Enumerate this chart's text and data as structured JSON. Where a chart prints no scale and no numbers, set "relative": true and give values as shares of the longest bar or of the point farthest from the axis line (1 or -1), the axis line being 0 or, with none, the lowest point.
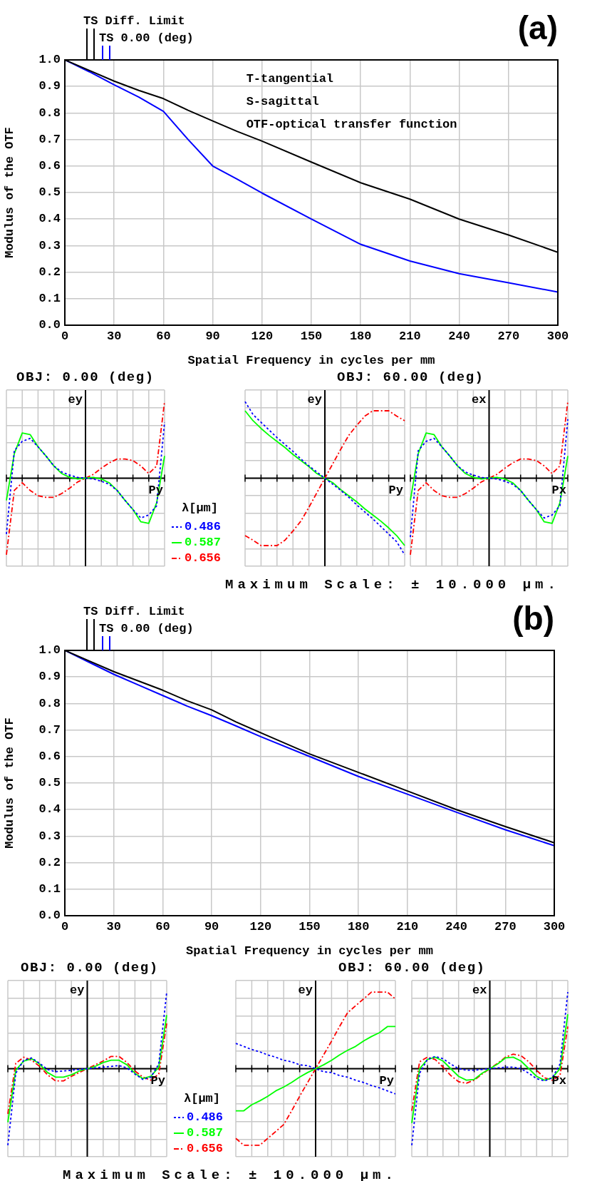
{
  "chart_data": [
    {
      "type": "line",
      "title": "(a)",
      "xlabel": "Spatial Frequency in cycles per mm",
      "ylabel": "Modulus of the OTF",
      "legend": "top left",
      "grid": true,
      "annotations": [
        "T-tangential",
        "S-sagittal",
        "OTF-optical transfer function"
      ],
      "x": [
        0,
        15,
        30,
        45,
        60,
        75,
        90,
        105,
        120,
        150,
        180,
        210,
        240,
        270,
        300
      ],
      "xlim": [
        0,
        300
      ],
      "ylim": [
        0,
        1
      ],
      "xticks": [
        0,
        30,
        60,
        90,
        120,
        150,
        180,
        210,
        240,
        270,
        300
      ],
      "yticks": [
        {
          "value": 0,
          "label": "0.0"
        },
        {
          "value": 0.1,
          "label": "0.1"
        },
        {
          "value": 0.2,
          "label": "0.2"
        },
        {
          "value": 0.3,
          "label": "0.3"
        },
        {
          "value": 0.4,
          "label": "0.4"
        },
        {
          "value": 0.5,
          "label": "0.5"
        },
        {
          "value": 0.6,
          "label": "0.6"
        },
        {
          "value": 0.7,
          "label": "0.7"
        },
        {
          "value": 0.8,
          "label": "0.8"
        },
        {
          "value": 0.9,
          "label": "0.9"
        },
        {
          "value": 1,
          "label": "1.0"
        }
      ],
      "series": [
        {
          "name": "TS Diff. Limit",
          "color": "#000000",
          "values": [
            1,
            0.96,
            0.92,
            0.885,
            0.854,
            0.81,
            0.77,
            0.73,
            0.694,
            0.615,
            0.537,
            0.475,
            0.4,
            0.34,
            0.275
          ]
        },
        {
          "name": "TS 0.00 (deg)",
          "color": "#0000ff",
          "values": [
            1,
            0.955,
            0.906,
            0.86,
            0.806,
            0.7,
            0.6,
            0.55,
            0.498,
            0.4,
            0.305,
            0.242,
            0.194,
            0.16,
            0.125
          ]
        }
      ]
    },
    {
      "type": "line",
      "title": "(b)",
      "xlabel": "Spatial Frequency in cycles per mm",
      "ylabel": "Modulus of the OTF",
      "legend": "top left",
      "grid": true,
      "x": [
        0,
        15,
        30,
        45,
        60,
        75,
        90,
        105,
        120,
        150,
        180,
        210,
        240,
        270,
        300
      ],
      "xlim": [
        0,
        300
      ],
      "ylim": [
        0,
        1
      ],
      "xticks": [
        0,
        30,
        60,
        90,
        120,
        150,
        180,
        210,
        240,
        270,
        300
      ],
      "yticks": [
        {
          "value": 0,
          "label": "0.0"
        },
        {
          "value": 0.1,
          "label": "0.1"
        },
        {
          "value": 0.2,
          "label": "0.2"
        },
        {
          "value": 0.3,
          "label": "0.3"
        },
        {
          "value": 0.4,
          "label": "0.4"
        },
        {
          "value": 0.5,
          "label": "0.5"
        },
        {
          "value": 0.6,
          "label": "0.6"
        },
        {
          "value": 0.7,
          "label": "0.7"
        },
        {
          "value": 0.8,
          "label": "0.8"
        },
        {
          "value": 0.9,
          "label": "0.9"
        },
        {
          "value": 1,
          "label": "1.0"
        }
      ],
      "series": [
        {
          "name": "TS Diff. Limit",
          "color": "#000000",
          "values": [
            1,
            0.96,
            0.92,
            0.885,
            0.85,
            0.81,
            0.776,
            0.73,
            0.69,
            0.61,
            0.54,
            0.47,
            0.4,
            0.336,
            0.275
          ]
        },
        {
          "name": "TS 0.00 (deg)",
          "color": "#0000ff",
          "values": [
            1,
            0.955,
            0.91,
            0.87,
            0.83,
            0.79,
            0.754,
            0.715,
            0.675,
            0.6,
            0.525,
            0.458,
            0.39,
            0.324,
            0.264
          ]
        }
      ]
    },
    {
      "type": "line",
      "title": "OBJ: 0.00 (deg)",
      "xlabel": "Py",
      "ylabel": "ey",
      "legend_title": "λ[µm]",
      "legend": "right",
      "grid": true,
      "relative": true,
      "categories": [
        null,
        null,
        null,
        null,
        null,
        null,
        null,
        null,
        null,
        null,
        null,
        null,
        null,
        null,
        null,
        null,
        null,
        null,
        null,
        null,
        null
      ],
      "series": [
        {
          "name": "0.486",
          "color": "#0000ff",
          "line_style": "dotted",
          "values": [
            -0.73,
            0.36,
            0.48,
            0.52,
            0.41,
            0.29,
            0.16,
            0.08,
            0.04,
            0.01,
            0,
            -0.01,
            -0.04,
            -0.08,
            -0.16,
            -0.29,
            -0.41,
            -0.52,
            -0.48,
            -0.36,
            0.73
          ]
        },
        {
          "name": "0.587",
          "color": "#00ff00",
          "line_style": "solid",
          "values": [
            -0.29,
            0.32,
            0.59,
            0.57,
            0.41,
            0.29,
            0.16,
            0.06,
            0.01,
            -0.01,
            0,
            0.01,
            -0.01,
            -0.06,
            -0.16,
            -0.29,
            -0.41,
            -0.57,
            -0.59,
            -0.32,
            0.29
          ]
        },
        {
          "name": "0.656",
          "color": "#ff0000",
          "line_style": "dashed",
          "values": [
            -1,
            -0.16,
            -0.06,
            -0.16,
            -0.23,
            -0.25,
            -0.25,
            -0.2,
            -0.13,
            -0.05,
            0,
            0.05,
            0.13,
            0.2,
            0.25,
            0.25,
            0.23,
            0.16,
            0.06,
            0.16,
            1
          ]
        }
      ]
    },
    {
      "type": "line",
      "title": "OBJ: 60.00 (deg)",
      "xlabel": "Py",
      "ylabel": "ey",
      "grid": true,
      "relative": true,
      "annotations": [
        "Maximum Scale: ± 10.000 µm."
      ],
      "categories": [
        null,
        null,
        null,
        null,
        null,
        null,
        null,
        null,
        null,
        null,
        null,
        null,
        null,
        null,
        null,
        null,
        null,
        null,
        null,
        null,
        null
      ],
      "series": [
        {
          "color": "#0000ff",
          "line_style": "dotted",
          "values": [
            1,
            0.83,
            0.73,
            0.63,
            0.53,
            0.44,
            0.35,
            0.25,
            0.16,
            0.08,
            0,
            -0.08,
            -0.16,
            -0.25,
            -0.35,
            -0.44,
            -0.53,
            -0.63,
            -0.73,
            -0.83,
            -1
          ]
        },
        {
          "color": "#00ff00",
          "line_style": "solid",
          "values": [
            0.88,
            0.75,
            0.65,
            0.56,
            0.48,
            0.4,
            0.31,
            0.23,
            0.15,
            0.06,
            0,
            -0.06,
            -0.15,
            -0.23,
            -0.31,
            -0.4,
            -0.48,
            -0.56,
            -0.65,
            -0.75,
            -0.88
          ]
        },
        {
          "color": "#ff0000",
          "line_style": "dashed",
          "values": [
            -0.75,
            -0.81,
            -0.88,
            -0.88,
            -0.88,
            -0.81,
            -0.69,
            -0.56,
            -0.38,
            -0.19,
            0,
            0.19,
            0.38,
            0.56,
            0.69,
            0.81,
            0.88,
            0.88,
            0.88,
            0.81,
            0.75
          ]
        }
      ]
    },
    {
      "type": "line",
      "xlabel": "Px",
      "ylabel": "ex",
      "grid": true,
      "relative": true,
      "categories": [
        null,
        null,
        null,
        null,
        null,
        null,
        null,
        null,
        null,
        null,
        null,
        null,
        null,
        null,
        null,
        null,
        null,
        null,
        null,
        null,
        null
      ],
      "series": [
        {
          "color": "#0000ff",
          "line_style": "dotted",
          "values": [
            -0.77,
            0.36,
            0.48,
            0.52,
            0.41,
            0.29,
            0.16,
            0.08,
            0.04,
            0.01,
            0,
            -0.01,
            -0.04,
            -0.08,
            -0.16,
            -0.29,
            -0.41,
            -0.52,
            -0.48,
            -0.36,
            0.77
          ]
        },
        {
          "color": "#00ff00",
          "line_style": "solid",
          "values": [
            -0.29,
            0.32,
            0.59,
            0.57,
            0.41,
            0.29,
            0.16,
            0.06,
            0.01,
            -0.01,
            0,
            0.01,
            -0.01,
            -0.06,
            -0.16,
            -0.29,
            -0.41,
            -0.57,
            -0.59,
            -0.32,
            0.29
          ]
        },
        {
          "color": "#ff0000",
          "line_style": "dashed",
          "values": [
            -1,
            -0.16,
            -0.06,
            -0.16,
            -0.23,
            -0.25,
            -0.25,
            -0.2,
            -0.13,
            -0.05,
            0,
            0.05,
            0.13,
            0.2,
            0.25,
            0.25,
            0.23,
            0.16,
            0.06,
            0.16,
            1
          ]
        }
      ]
    },
    {
      "type": "line",
      "title": "OBJ: 0.00 (deg)",
      "xlabel": "Py",
      "ylabel": "ey",
      "legend_title": "λ[µm]",
      "legend": "right",
      "grid": true,
      "relative": true,
      "categories": [
        null,
        null,
        null,
        null,
        null,
        null,
        null,
        null,
        null,
        null,
        null,
        null,
        null,
        null,
        null,
        null,
        null,
        null,
        null,
        null,
        null
      ],
      "series": [
        {
          "name": "0.486",
          "color": "#0000ff",
          "line_style": "dotted",
          "values": [
            -1,
            -0.06,
            0.11,
            0.14,
            0.07,
            -0.01,
            -0.04,
            -0.03,
            -0.02,
            -0.01,
            0,
            0.01,
            0.02,
            0.03,
            0.04,
            0.01,
            -0.07,
            -0.14,
            -0.11,
            0.06,
            1
          ]
        },
        {
          "name": "0.587",
          "color": "#00ff00",
          "line_style": "solid",
          "values": [
            -0.7,
            -0.02,
            0.1,
            0.13,
            0.06,
            -0.05,
            -0.11,
            -0.11,
            -0.08,
            -0.03,
            0,
            0.03,
            0.08,
            0.11,
            0.11,
            0.05,
            -0.06,
            -0.13,
            -0.1,
            0.02,
            0.7
          ]
        },
        {
          "name": "0.656",
          "color": "#ff0000",
          "line_style": "dashed",
          "values": [
            -0.59,
            0.07,
            0.15,
            0.11,
            0.03,
            -0.08,
            -0.16,
            -0.16,
            -0.1,
            -0.05,
            0,
            0.05,
            0.1,
            0.16,
            0.16,
            0.08,
            -0.03,
            -0.11,
            -0.15,
            -0.07,
            0.59
          ]
        }
      ]
    },
    {
      "type": "line",
      "title": "OBJ: 60.00 (deg)",
      "xlabel": "Py",
      "ylabel": "ey",
      "grid": true,
      "relative": true,
      "annotations": [
        "Maximum Scale: ± 10.000 µm."
      ],
      "categories": [
        null,
        null,
        null,
        null,
        null,
        null,
        null,
        null,
        null,
        null,
        null,
        null,
        null,
        null,
        null,
        null,
        null,
        null,
        null,
        null,
        null
      ],
      "series": [
        {
          "color": "#0000ff",
          "line_style": "dotted",
          "values": [
            0.33,
            0.29,
            0.25,
            0.22,
            0.18,
            0.15,
            0.11,
            0.09,
            0.05,
            0.04,
            0,
            -0.04,
            -0.05,
            -0.09,
            -0.11,
            -0.15,
            -0.18,
            -0.22,
            -0.25,
            -0.29,
            -0.33
          ]
        },
        {
          "color": "#00ff00",
          "line_style": "solid",
          "values": [
            -0.55,
            -0.55,
            -0.47,
            -0.42,
            -0.36,
            -0.29,
            -0.24,
            -0.18,
            -0.11,
            -0.05,
            0,
            0.05,
            0.11,
            0.18,
            0.24,
            0.29,
            0.36,
            0.42,
            0.47,
            0.55,
            0.55
          ]
        },
        {
          "color": "#ff0000",
          "line_style": "dashed",
          "values": [
            -0.91,
            -1,
            -1,
            -1,
            -0.91,
            -0.82,
            -0.73,
            -0.55,
            -0.36,
            -0.18,
            0,
            0.18,
            0.36,
            0.55,
            0.73,
            0.82,
            0.91,
            1,
            1,
            1,
            0.91
          ]
        }
      ]
    },
    {
      "type": "line",
      "xlabel": "Px",
      "ylabel": "ex",
      "grid": true,
      "relative": true,
      "categories": [
        null,
        null,
        null,
        null,
        null,
        null,
        null,
        null,
        null,
        null,
        null,
        null,
        null,
        null,
        null,
        null,
        null,
        null,
        null,
        null,
        null
      ],
      "series": [
        {
          "color": "#0000ff",
          "line_style": "dotted",
          "values": [
            -1,
            -0.06,
            0.12,
            0.16,
            0.13,
            0.06,
            0,
            -0.02,
            -0.02,
            -0.01,
            0,
            0.01,
            0.02,
            0.02,
            0,
            -0.06,
            -0.13,
            -0.16,
            -0.12,
            0.06,
            1
          ]
        },
        {
          "color": "#00ff00",
          "line_style": "solid",
          "values": [
            -0.71,
            0,
            0.12,
            0.15,
            0.1,
            0,
            -0.1,
            -0.15,
            -0.14,
            -0.06,
            0,
            0.06,
            0.14,
            0.15,
            0.1,
            0,
            -0.1,
            -0.15,
            -0.12,
            0,
            0.71
          ]
        },
        {
          "color": "#ff0000",
          "line_style": "dashed",
          "values": [
            -0.55,
            0.09,
            0.15,
            0.12,
            0.02,
            -0.09,
            -0.17,
            -0.19,
            -0.15,
            -0.07,
            0,
            0.07,
            0.15,
            0.19,
            0.17,
            0.09,
            -0.02,
            -0.12,
            -0.15,
            -0.09,
            0.55
          ]
        }
      ]
    }
  ]
}
